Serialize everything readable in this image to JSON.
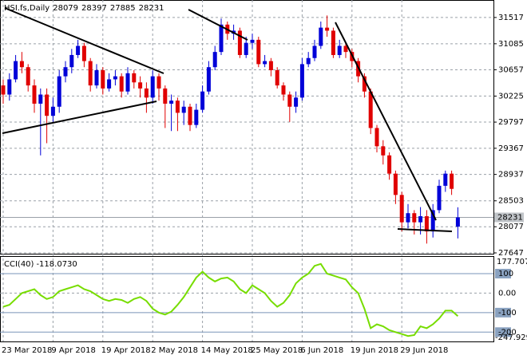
{
  "chart_data": [
    {
      "type": "candlestick",
      "title": "HSI.fs,Daily",
      "categories": [
        "23 Mar 2018",
        null,
        null,
        null,
        null,
        null,
        null,
        null,
        "9 Apr 2018",
        null,
        null,
        null,
        null,
        null,
        null,
        null,
        "19 Apr 2018",
        null,
        null,
        null,
        null,
        null,
        null,
        null,
        "2 May 2018",
        null,
        null,
        null,
        null,
        null,
        null,
        null,
        "14 May 2018",
        null,
        null,
        null,
        null,
        null,
        null,
        null,
        "25 May 2018",
        null,
        null,
        null,
        null,
        null,
        null,
        null,
        "6 Jun 2018",
        null,
        null,
        null,
        null,
        null,
        null,
        null,
        "19 Jun 2018",
        null,
        null,
        null,
        null,
        null,
        null,
        null,
        "29 Jun 2018",
        null,
        null,
        null,
        null,
        null,
        null,
        null,
        null,
        null
      ],
      "open": [
        30400,
        30250,
        30500,
        30800,
        30700,
        30400,
        30100,
        30250,
        29900,
        30050,
        30550,
        30700,
        30900,
        31050,
        30800,
        30400,
        30650,
        30350,
        30500,
        30550,
        30300,
        30600,
        30450,
        30350,
        30200,
        30550,
        30350,
        30100,
        30150,
        29950,
        30050,
        29750,
        30000,
        30300,
        30700,
        30950,
        31400,
        31250,
        31300,
        30900,
        31100,
        31150,
        30750,
        30800,
        30650,
        30400,
        30250,
        30050,
        30200,
        30750,
        30850,
        31050,
        31350,
        31300,
        30900,
        31050,
        30950,
        30800,
        30550,
        30300,
        29700,
        29400,
        29250,
        28950,
        28600,
        28150,
        28300,
        28150,
        28250,
        28000,
        28350,
        28750,
        28950,
        28079
      ],
      "high": [
        30500,
        30600,
        30900,
        30950,
        30750,
        30500,
        30350,
        30350,
        30200,
        30650,
        30800,
        31000,
        31150,
        31100,
        30850,
        30750,
        30700,
        30600,
        30650,
        30600,
        30700,
        30650,
        30550,
        30450,
        30650,
        30600,
        30400,
        30250,
        30200,
        30150,
        30100,
        30100,
        30400,
        30800,
        31050,
        31500,
        31450,
        31400,
        31350,
        31200,
        31250,
        31200,
        30900,
        30850,
        30700,
        30450,
        30300,
        30300,
        30850,
        30950,
        31150,
        31450,
        31550,
        31350,
        31150,
        31100,
        31000,
        30850,
        30600,
        30350,
        29750,
        29500,
        29300,
        29000,
        28650,
        28450,
        28350,
        28400,
        28350,
        28450,
        28850,
        29000,
        29000,
        28397
      ],
      "low": [
        30100,
        30150,
        30450,
        30600,
        30300,
        29950,
        29250,
        29450,
        29800,
        29950,
        30450,
        30600,
        30850,
        30700,
        30300,
        30350,
        30250,
        30300,
        30400,
        30200,
        30250,
        30350,
        30200,
        29950,
        30100,
        30150,
        29700,
        29650,
        29650,
        29750,
        29650,
        29700,
        29950,
        30250,
        30650,
        30900,
        31150,
        31150,
        30850,
        30850,
        31000,
        30700,
        30700,
        30550,
        30350,
        30150,
        29800,
        29950,
        30150,
        30700,
        30800,
        31000,
        31200,
        30850,
        30850,
        30850,
        30700,
        30450,
        30200,
        29600,
        29300,
        29100,
        28850,
        28450,
        28000,
        28050,
        27950,
        27950,
        27800,
        27900,
        28300,
        28650,
        28600,
        27885
      ],
      "close": [
        30250,
        30500,
        30800,
        30700,
        30400,
        30100,
        30250,
        29900,
        30050,
        30550,
        30700,
        30900,
        31050,
        30800,
        30400,
        30650,
        30350,
        30500,
        30550,
        30300,
        30600,
        30450,
        30350,
        30200,
        30550,
        30350,
        30100,
        30150,
        29950,
        30050,
        29750,
        30000,
        30300,
        30700,
        30950,
        31400,
        31250,
        31300,
        30900,
        31100,
        31150,
        30750,
        30800,
        30650,
        30400,
        30250,
        30050,
        30200,
        30750,
        30850,
        31050,
        31350,
        31300,
        30900,
        31050,
        30950,
        30800,
        30550,
        30300,
        29700,
        29400,
        29250,
        28950,
        28600,
        28150,
        28300,
        28150,
        28250,
        28000,
        28350,
        28750,
        28950,
        28700,
        28231
      ],
      "up_color": "#0000d8",
      "down_color": "#e00000",
      "ylim": [
        27634,
        31778
      ],
      "yticks": [
        31517,
        31085,
        30657,
        30225,
        29797,
        29367,
        28937,
        28503,
        28077,
        27647
      ],
      "grid": true
    },
    {
      "type": "line",
      "title": "CCI(40)",
      "value_label": "-118.0730",
      "values": [
        -70,
        -60,
        -30,
        0,
        10,
        20,
        -10,
        -30,
        -20,
        10,
        20,
        30,
        40,
        20,
        10,
        -10,
        -30,
        -40,
        -30,
        -35,
        -50,
        -30,
        -20,
        -40,
        -80,
        -100,
        -110,
        -95,
        -60,
        -20,
        30,
        80,
        110,
        80,
        60,
        75,
        80,
        60,
        20,
        0,
        40,
        20,
        0,
        -40,
        -70,
        -50,
        -10,
        50,
        80,
        100,
        140,
        150,
        100,
        90,
        80,
        70,
        30,
        0,
        -80,
        -180,
        -160,
        -170,
        -190,
        -200,
        -210,
        -220,
        -215,
        -170,
        -180,
        -160,
        -130,
        -90,
        -90,
        -118.073
      ],
      "color": "#77dd00",
      "ylim": [
        -247.929,
        177.7073
      ],
      "yticks": [
        100,
        {
          "value": 0,
          "label": "0.00"
        },
        -100,
        -200
      ]
    }
  ]
}
